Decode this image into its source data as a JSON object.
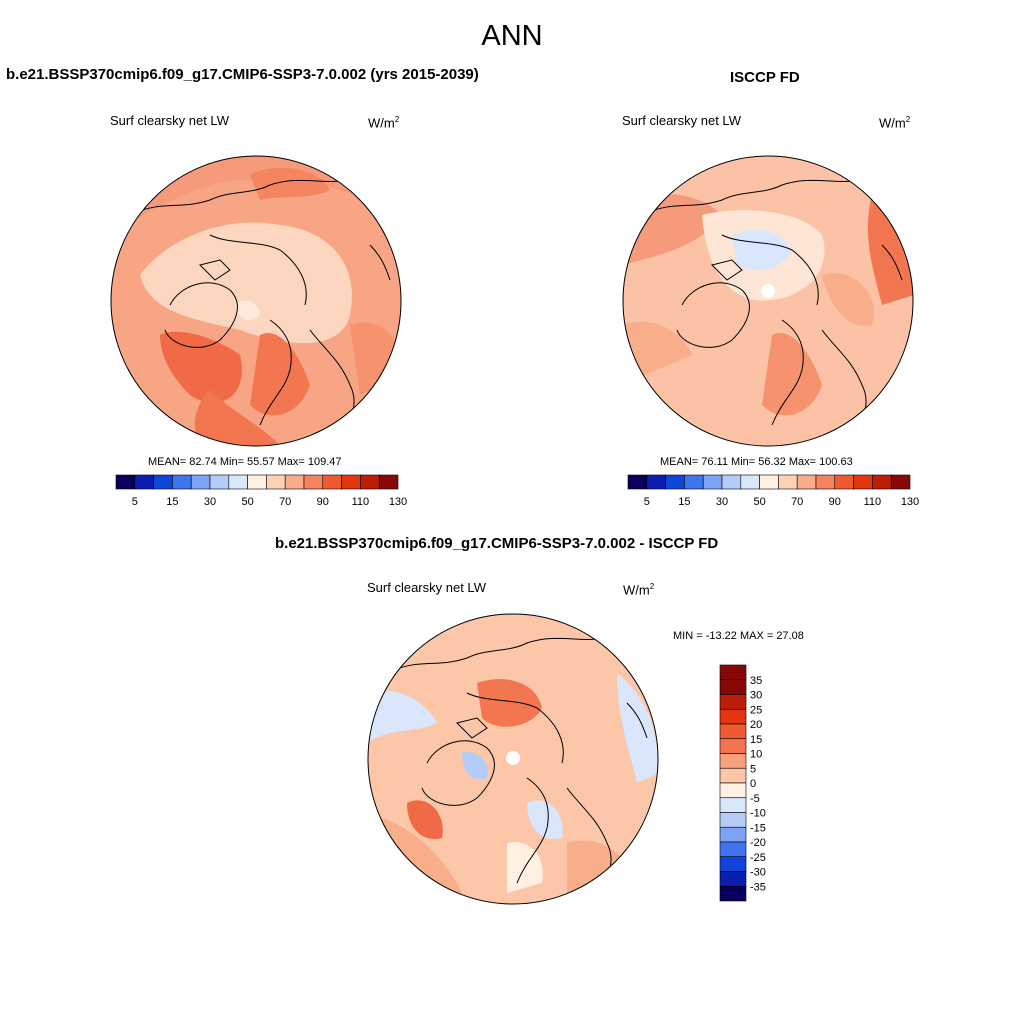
{
  "page": {
    "main_title": "ANN",
    "units_base": "W/m",
    "units_exp": "2"
  },
  "panels": [
    {
      "id": "model",
      "title": "b.e21.BSSP370cmip6.f09_g17.CMIP6-SSP3-7.0.002 (yrs 2015-2039)",
      "variable": "Surf clearsky net LW",
      "stats": "MEAN=  82.74  Min=  55.57  Max= 109.47"
    },
    {
      "id": "obs",
      "title": "ISCCP FD",
      "variable": "Surf clearsky net LW",
      "stats": "MEAN=  76.11  Min=  56.32  Max= 100.63"
    },
    {
      "id": "diff",
      "title": "b.e21.BSSP370cmip6.f09_g17.CMIP6-SSP3-7.0.002 - ISCCP FD",
      "variable": "Surf clearsky net LW",
      "stats": "MIN = -13.22 MAX =  27.08"
    }
  ],
  "colorbar_abs": {
    "labels": [
      "5",
      "15",
      "30",
      "50",
      "70",
      "90",
      "110",
      "130"
    ],
    "colors": [
      "#08005c",
      "#0a1fb0",
      "#1144d8",
      "#3f74ee",
      "#7ea2f5",
      "#b3ccf8",
      "#d9e6fb",
      "#fff0e2",
      "#fcd2b6",
      "#f8ad8b",
      "#f48360",
      "#ee5a32",
      "#e23512",
      "#bd1e08",
      "#880808"
    ]
  },
  "colorbar_diff": {
    "labels": [
      "35",
      "30",
      "25",
      "20",
      "15",
      "10",
      "5",
      "0",
      "-5",
      "-10",
      "-15",
      "-20",
      "-25",
      "-30",
      "-35"
    ],
    "colors": [
      "#880808",
      "#bd1e08",
      "#e23512",
      "#ee5a32",
      "#f4734d",
      "#f8a07e",
      "#fcc6a8",
      "#fff0e2",
      "#d9e6fb",
      "#b3ccf8",
      "#7ea2f5",
      "#3f74ee",
      "#1144d8",
      "#0a1fb0",
      "#08005c"
    ]
  }
}
